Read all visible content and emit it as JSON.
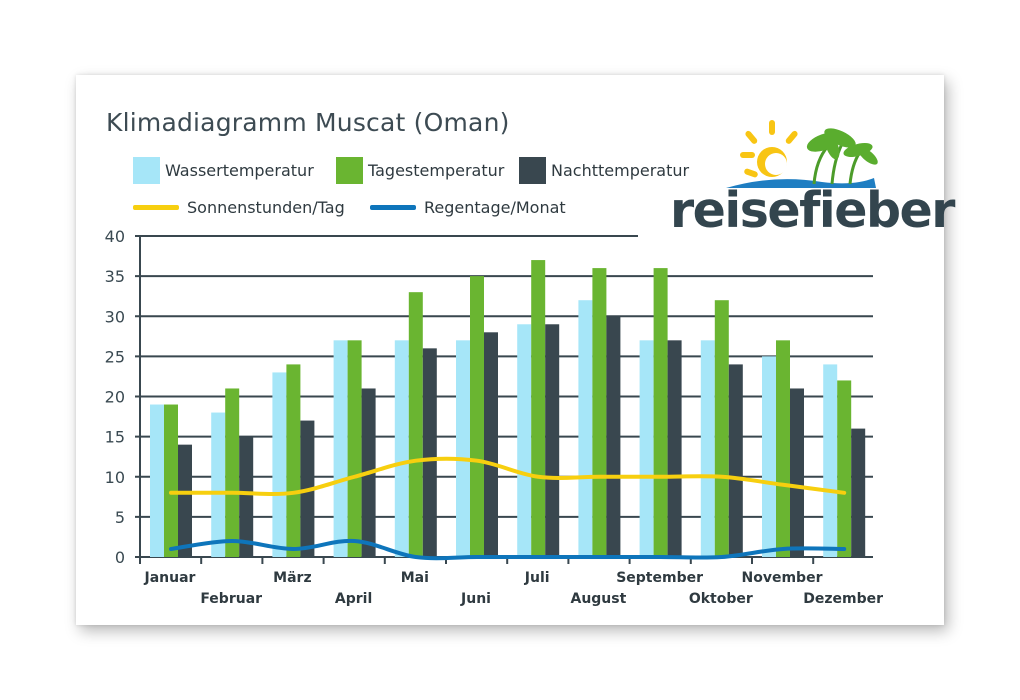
{
  "title": "Klimadiagramm Muscat (Oman)",
  "logo": {
    "text": "reisefieber"
  },
  "legend": [
    {
      "label": "Wassertemperatur",
      "color": "#a6e6f8",
      "kind": "bar"
    },
    {
      "label": "Tagestemperatur",
      "color": "#6ab531",
      "kind": "bar"
    },
    {
      "label": "Nachttemperatur",
      "color": "#39474f",
      "kind": "bar"
    },
    {
      "label": "Sonnenstunden/Tag",
      "color": "#f7cf0f",
      "kind": "line"
    },
    {
      "label": "Regentage/Monat",
      "color": "#0e75bb",
      "kind": "line"
    }
  ],
  "chart_data": {
    "type": "bar",
    "title": "Klimadiagramm Muscat (Oman)",
    "categories": [
      "Januar",
      "Februar",
      "März",
      "April",
      "Mai",
      "Juni",
      "Juli",
      "August",
      "September",
      "Oktober",
      "November",
      "Dezember"
    ],
    "ylim": [
      0,
      40
    ],
    "yticks": [
      0,
      5,
      10,
      15,
      20,
      25,
      30,
      35,
      40
    ],
    "grid": true,
    "legend_position": "top-left",
    "series": [
      {
        "name": "Wassertemperatur",
        "type": "bar",
        "color": "#a6e6f8",
        "values": [
          19,
          18,
          23,
          27,
          27,
          27,
          29,
          32,
          27,
          27,
          25,
          24
        ]
      },
      {
        "name": "Tagestemperatur",
        "type": "bar",
        "color": "#6ab531",
        "values": [
          19,
          21,
          24,
          27,
          33,
          35,
          37,
          36,
          36,
          32,
          27,
          22
        ]
      },
      {
        "name": "Nachttemperatur",
        "type": "bar",
        "color": "#39474f",
        "values": [
          14,
          15,
          17,
          21,
          26,
          28,
          29,
          30,
          27,
          24,
          21,
          16
        ]
      },
      {
        "name": "Sonnenstunden/Tag",
        "type": "line",
        "color": "#f7cf0f",
        "values": [
          8,
          8,
          8,
          10,
          12,
          12,
          10,
          10,
          10,
          10,
          9,
          8
        ]
      },
      {
        "name": "Regentage/Monat",
        "type": "line",
        "color": "#0e75bb",
        "values": [
          1,
          2,
          1,
          2,
          0,
          0,
          0,
          0,
          0,
          0,
          1,
          1
        ]
      }
    ]
  }
}
